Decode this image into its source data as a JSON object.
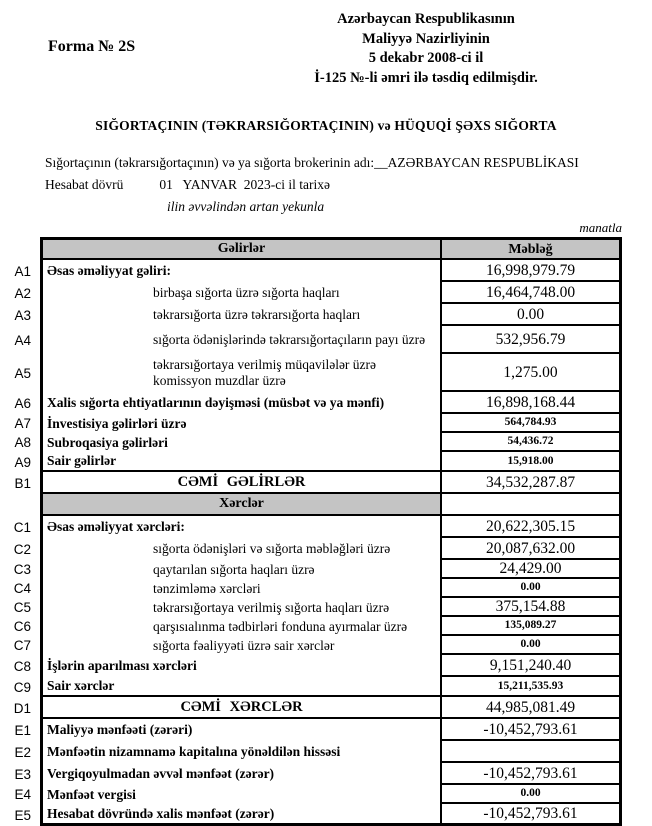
{
  "form": {
    "form_number": "Forma № 2S",
    "approval": [
      "Azərbaycan Respublikasının",
      "Maliyyə Nazirliyinin",
      "5 dekabr 2008-ci il",
      "İ-125 №-li əmri ilə təsdiq edilmişdir."
    ],
    "title": "SIĞORTAÇININ (TƏKRARSIĞORTAÇININ) və HÜQUQİ ŞƏXS SIĞORTA",
    "insurer_line": "Sığortaçının (təkrarsığortaçının) və ya sığorta brokerinin adı:__AZƏRBAYCAN RESPUBLİKASI",
    "report_period_label": "Hesabat dövrü",
    "report_period_value": "01   YANVAR  2023-ci il tarixə",
    "cumulative_note": "ilin əvvəlindən artan yekunla",
    "currency_note": "manatla"
  },
  "table": {
    "income_header": "Gəlirlər",
    "amount_header": "Məbləğ",
    "rows": [
      {
        "id": "A1",
        "label": "Əsas əməliyyat gəliri:",
        "value": "16,998,979.79"
      },
      {
        "id": "A2",
        "label": "birbaşa sığorta üzrə sığorta haqları",
        "value": "16,464,748.00"
      },
      {
        "id": "A3",
        "label": "təkrarsığorta üzrə təkrarsığorta haqları",
        "value": "0.00"
      },
      {
        "id": "A4",
        "label": "sığorta ödənişlərində təkrarsığortaçıların payı üzrə",
        "value": "532,956.79"
      },
      {
        "id": "A5",
        "label": "təkrarsığortaya verilmiş müqavilələr üzrə komissyon muzdlar üzrə",
        "value": "1,275.00"
      },
      {
        "id": "A6",
        "label": "Xalis sığorta ehtiyatlarının dəyişməsi (müsbət və ya mənfi)",
        "value": "16,898,168.44"
      },
      {
        "id": "A7",
        "label": "İnvestisiya gəlirləri üzrə",
        "value": "564,784.93"
      },
      {
        "id": "A8",
        "label": "Subroqasiya gəlirləri",
        "value": "54,436.72"
      },
      {
        "id": "A9",
        "label": "Sair gəlirlər",
        "value": "15,918.00"
      },
      {
        "id": "B1",
        "label": "CƏMİ GƏLİRLƏR",
        "value": "34,532,287.87"
      },
      {
        "id": "",
        "label": "Xərclər",
        "value": ""
      },
      {
        "id": "C1",
        "label": "Əsas əməliyyat xərcləri:",
        "value": "20,622,305.15"
      },
      {
        "id": "C2",
        "label": "sığorta ödənişləri və sığorta məbləğləri üzrə",
        "value": "20,087,632.00"
      },
      {
        "id": "C3",
        "label": "qaytarılan sığorta haqları üzrə",
        "value": "24,429.00"
      },
      {
        "id": "C4",
        "label": "tənzimləmə xərcləri",
        "value": "0.00"
      },
      {
        "id": "C5",
        "label": "təkrarsığortaya verilmiş sığorta haqları üzrə",
        "value": "375,154.88"
      },
      {
        "id": "C6",
        "label": "qarşısıalınma tədbirləri fonduna ayırmalar üzrə",
        "value": "135,089.27"
      },
      {
        "id": "C7",
        "label": "sığorta fəaliyyəti üzrə sair xərclər",
        "value": "0.00"
      },
      {
        "id": "C8",
        "label": "İşlərin aparılması xərcləri",
        "value": "9,151,240.40"
      },
      {
        "id": "C9",
        "label": "Sair xərclər",
        "value": "15,211,535.93"
      },
      {
        "id": "D1",
        "label": "CƏMİ XƏRCLƏR",
        "value": "44,985,081.49"
      },
      {
        "id": "E1",
        "label": "Maliyyə mənfəəti (zərəri)",
        "value": "-10,452,793.61"
      },
      {
        "id": "E2",
        "label": "Mənfəətin nizamnamə kapitalına yönəldilən hissəsi",
        "value": ""
      },
      {
        "id": "E3",
        "label": "Vergiqoyulmadan əvvəl mənfəət (zərər)",
        "value": "-10,452,793.61"
      },
      {
        "id": "E4",
        "label": "Mənfəət vergisi",
        "value": "0.00"
      },
      {
        "id": "E5",
        "label": "Hesabat dövründə xalis mənfəət (zərər)",
        "value": "-10,452,793.61"
      }
    ]
  }
}
